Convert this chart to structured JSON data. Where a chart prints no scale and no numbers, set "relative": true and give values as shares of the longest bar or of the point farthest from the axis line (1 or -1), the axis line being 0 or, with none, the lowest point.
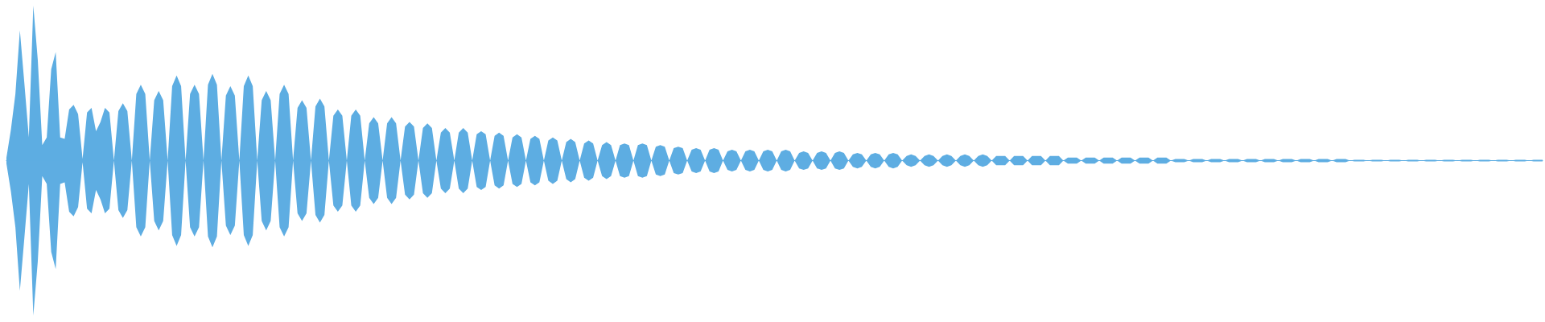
{
  "chart_data": {
    "type": "area",
    "relative": true,
    "categories": [
      null,
      null,
      null,
      null,
      null,
      null,
      null,
      null,
      null,
      null,
      null,
      null,
      null,
      null,
      null,
      null,
      null,
      null,
      null,
      null,
      null,
      null,
      null,
      null,
      null,
      null,
      null,
      null,
      null,
      null,
      null,
      null,
      null,
      null,
      null,
      null,
      null,
      null,
      null,
      null,
      null,
      null,
      null,
      null,
      null,
      null,
      null,
      null,
      null,
      null,
      null,
      null,
      null,
      null,
      null,
      null,
      null,
      null,
      null,
      null,
      null,
      null,
      null,
      null,
      null,
      null,
      null,
      null,
      null,
      null,
      null,
      null,
      null,
      null,
      null,
      null,
      null,
      null,
      null,
      null,
      null,
      null,
      null,
      null,
      null,
      null,
      null,
      null,
      null,
      null,
      null,
      null,
      null,
      null,
      null,
      null,
      null,
      null,
      null,
      null,
      null,
      null,
      null,
      null,
      null,
      null,
      null,
      null,
      null,
      null,
      null,
      null,
      null,
      null,
      null,
      null,
      null,
      null,
      null,
      null,
      null,
      null,
      null,
      null,
      null,
      null,
      null,
      null,
      null,
      null,
      null,
      null,
      null,
      null,
      null,
      null,
      null,
      null,
      null,
      null,
      null,
      null,
      null,
      null,
      null,
      null,
      null,
      null,
      null,
      null,
      null,
      null,
      null,
      null,
      null,
      null,
      null,
      null,
      null,
      null,
      null,
      null,
      null,
      null,
      null,
      null,
      null,
      null,
      null,
      null,
      null,
      null,
      null,
      null,
      null,
      null,
      null,
      null,
      null,
      null,
      null,
      null,
      null,
      null,
      null,
      null,
      null,
      null,
      null,
      null,
      null,
      null,
      null,
      null,
      null,
      null,
      null,
      null,
      null,
      null,
      null,
      null,
      null,
      null,
      null,
      null,
      null,
      null,
      null,
      null,
      null,
      null,
      null,
      null,
      null,
      null,
      null,
      null,
      null,
      null,
      null,
      null,
      null,
      null,
      null,
      null,
      null,
      null,
      null,
      null,
      null,
      null,
      null,
      null,
      null,
      null,
      null,
      null,
      null,
      null,
      null,
      null,
      null,
      null,
      null,
      null,
      null,
      null,
      null,
      null,
      null,
      null,
      null,
      null,
      null,
      null,
      null,
      null,
      null,
      null,
      null,
      null,
      null,
      null,
      null,
      null,
      null,
      null,
      null,
      null,
      null,
      null,
      null,
      null,
      null,
      null,
      null,
      null,
      null,
      null,
      null,
      null,
      null,
      null,
      null,
      null,
      null,
      null,
      null,
      null,
      null,
      null,
      null,
      null,
      null,
      null,
      null,
      null,
      null,
      null,
      null,
      null,
      null,
      null,
      null,
      null,
      null,
      null,
      null,
      null,
      null,
      null,
      null,
      null,
      null,
      null,
      null,
      null,
      null,
      null,
      null,
      null,
      null,
      null,
      null,
      null,
      null,
      null,
      null,
      null,
      null,
      null,
      null,
      null,
      null,
      null,
      null,
      null,
      null,
      null,
      null,
      null,
      null,
      null
    ],
    "series": [
      {
        "color": "#5dade2",
        "values": [
          0.02,
          0.2,
          0.43,
          0.84,
          0.5,
          0.15,
          1,
          0.65,
          0.1,
          0.15,
          0.59,
          0.7,
          0.15,
          0.14,
          0.33,
          0.36,
          0.3,
          0.01,
          0.31,
          0.34,
          0.19,
          0.25,
          0.34,
          0.31,
          0,
          0.32,
          0.37,
          0.32,
          0,
          0.43,
          0.49,
          0.43,
          0,
          0.39,
          0.45,
          0.39,
          0,
          0.48,
          0.55,
          0.48,
          0,
          0.43,
          0.49,
          0.43,
          0,
          0.49,
          0.56,
          0.49,
          0,
          0.42,
          0.48,
          0.42,
          0,
          0.48,
          0.55,
          0.48,
          0,
          0.39,
          0.45,
          0.39,
          0,
          0.43,
          0.49,
          0.43,
          0,
          0.34,
          0.39,
          0.34,
          0,
          0.35,
          0.4,
          0.35,
          0,
          0.29,
          0.33,
          0.29,
          0,
          0.29,
          0.33,
          0.29,
          0,
          0.24,
          0.28,
          0.24,
          0,
          0.24,
          0.28,
          0.24,
          0,
          0.22,
          0.25,
          0.22,
          0,
          0.21,
          0.24,
          0.21,
          0,
          0.18,
          0.21,
          0.18,
          0,
          0.18,
          0.21,
          0.18,
          0,
          0.17,
          0.19,
          0.17,
          0,
          0.16,
          0.18,
          0.16,
          0,
          0.15,
          0.17,
          0.15,
          0,
          0.14,
          0.16,
          0.14,
          0,
          0.13,
          0.15,
          0.13,
          0,
          0.12,
          0.14,
          0.12,
          0,
          0.11,
          0.13,
          0.11,
          0,
          0.1,
          0.12,
          0.1,
          0,
          0.1,
          0.11,
          0.1,
          0,
          0.1,
          0.11,
          0.1,
          0,
          0.09,
          0.1,
          0.09,
          0,
          0.08,
          0.09,
          0.08,
          0,
          0.07,
          0.08,
          0.07,
          0,
          0.07,
          0.08,
          0.07,
          0,
          0.06,
          0.07,
          0.06,
          0,
          0.06,
          0.07,
          0.06,
          0,
          0.06,
          0.07,
          0.06,
          0,
          0.06,
          0.07,
          0.06,
          0,
          0.05,
          0.06,
          0.05,
          0,
          0.05,
          0.06,
          0.05,
          0,
          0.05,
          0.06,
          0.05,
          0,
          0.04,
          0.05,
          0.04,
          0,
          0.04,
          0.05,
          0.04,
          0,
          0.04,
          0.05,
          0.04,
          0,
          0.03,
          0.04,
          0.03,
          0,
          0.03,
          0.04,
          0.03,
          0,
          0.03,
          0.04,
          0.03,
          0,
          0.03,
          0.04,
          0.03,
          0,
          0.03,
          0.04,
          0.03,
          0,
          0.03,
          0.03,
          0.03,
          0,
          0.03,
          0.03,
          0.03,
          0,
          0.03,
          0.03,
          0.03,
          0,
          0.03,
          0.03,
          0.03,
          0,
          0.02,
          0.02,
          0.02,
          0,
          0.02,
          0.02,
          0.02,
          0,
          0.02,
          0.02,
          0.02,
          0,
          0.02,
          0.02,
          0.02,
          0,
          0.02,
          0.02,
          0.02,
          0,
          0.02,
          0.02,
          0.02,
          0,
          0.01,
          0.01,
          0.01,
          0,
          0.01,
          0.01,
          0.01,
          0,
          0.01,
          0.01,
          0.01,
          0,
          0.01,
          0.01,
          0.01,
          0,
          0.01,
          0.01,
          0.01,
          0,
          0.01,
          0.01,
          0.01,
          0,
          0.01,
          0.01,
          0.01,
          0,
          0.01,
          0.01,
          0.01,
          0,
          0.01,
          0.01,
          0.01,
          0,
          0.01,
          0.01,
          0.01,
          0,
          0.005,
          0.005,
          0.005,
          0,
          0.005,
          0.005,
          0.005,
          0,
          0.005,
          0.005,
          0.005,
          0,
          0.005,
          0.005,
          0.005,
          0,
          0.005,
          0.005,
          0.005,
          0,
          0.005,
          0.005,
          0.005,
          0,
          0.005,
          0.005,
          0.005,
          0,
          0.005,
          0.005,
          0.005,
          0,
          0.005,
          0.005,
          0.005,
          0,
          0.005,
          0.005,
          0.005,
          0,
          0.005,
          0.005,
          0.005
        ]
      },
      {
        "color": "#5eade2",
        "values": [
          -0.02,
          -0.2,
          -0.43,
          -0.84,
          -0.5,
          -0.15,
          -1,
          -0.65,
          -0.1,
          -0.15,
          -0.59,
          -0.7,
          -0.15,
          -0.14,
          -0.33,
          -0.36,
          -0.3,
          -0.01,
          -0.31,
          -0.34,
          -0.19,
          -0.25,
          -0.34,
          -0.31,
          0,
          -0.32,
          -0.37,
          -0.32,
          0,
          -0.43,
          -0.49,
          -0.43,
          0,
          -0.39,
          -0.45,
          -0.39,
          0,
          -0.48,
          -0.55,
          -0.48,
          0,
          -0.43,
          -0.49,
          -0.43,
          0,
          -0.49,
          -0.56,
          -0.49,
          0,
          -0.42,
          -0.48,
          -0.42,
          0,
          -0.48,
          -0.55,
          -0.48,
          0,
          -0.39,
          -0.45,
          -0.39,
          0,
          -0.43,
          -0.49,
          -0.43,
          0,
          -0.34,
          -0.39,
          -0.34,
          0,
          -0.35,
          -0.4,
          -0.35,
          0,
          -0.29,
          -0.33,
          -0.29,
          0,
          -0.29,
          -0.33,
          -0.29,
          0,
          -0.24,
          -0.28,
          -0.24,
          0,
          -0.24,
          -0.28,
          -0.24,
          0,
          -0.22,
          -0.25,
          -0.22,
          0,
          -0.21,
          -0.24,
          -0.21,
          0,
          -0.18,
          -0.21,
          -0.18,
          0,
          -0.18,
          -0.21,
          -0.18,
          0,
          -0.17,
          -0.19,
          -0.17,
          0,
          -0.16,
          -0.18,
          -0.16,
          0,
          -0.15,
          -0.17,
          -0.15,
          0,
          -0.14,
          -0.16,
          -0.14,
          0,
          -0.13,
          -0.15,
          -0.13,
          0,
          -0.12,
          -0.14,
          -0.12,
          0,
          -0.11,
          -0.13,
          -0.11,
          0,
          -0.1,
          -0.12,
          -0.1,
          0,
          -0.1,
          -0.11,
          -0.1,
          0,
          -0.1,
          -0.11,
          -0.1,
          0,
          -0.09,
          -0.1,
          -0.09,
          0,
          -0.08,
          -0.09,
          -0.08,
          0,
          -0.07,
          -0.08,
          -0.07,
          0,
          -0.07,
          -0.08,
          -0.07,
          0,
          -0.06,
          -0.07,
          -0.06,
          0,
          -0.06,
          -0.07,
          -0.06,
          0,
          -0.06,
          -0.07,
          -0.06,
          0,
          -0.06,
          -0.07,
          -0.06,
          0,
          -0.05,
          -0.06,
          -0.05,
          0,
          -0.05,
          -0.06,
          -0.05,
          0,
          -0.05,
          -0.06,
          -0.05,
          0,
          -0.04,
          -0.05,
          -0.04,
          0,
          -0.04,
          -0.05,
          -0.04,
          0,
          -0.04,
          -0.05,
          -0.04,
          0,
          -0.03,
          -0.04,
          -0.03,
          0,
          -0.03,
          -0.04,
          -0.03,
          0,
          -0.03,
          -0.04,
          -0.03,
          0,
          -0.03,
          -0.04,
          -0.03,
          0,
          -0.03,
          -0.04,
          -0.03,
          0,
          -0.03,
          -0.03,
          -0.03,
          0,
          -0.03,
          -0.03,
          -0.03,
          0,
          -0.03,
          -0.03,
          -0.03,
          0,
          -0.03,
          -0.03,
          -0.03,
          0,
          -0.02,
          -0.02,
          -0.02,
          0,
          -0.02,
          -0.02,
          -0.02,
          0,
          -0.02,
          -0.02,
          -0.02,
          0,
          -0.02,
          -0.02,
          -0.02,
          0,
          -0.02,
          -0.02,
          -0.02,
          0,
          -0.02,
          -0.02,
          -0.02,
          0,
          -0.01,
          -0.01,
          -0.01,
          0,
          -0.01,
          -0.01,
          -0.01,
          0,
          -0.01,
          -0.01,
          -0.01,
          0,
          -0.01,
          -0.01,
          -0.01,
          0,
          -0.01,
          -0.01,
          -0.01,
          0,
          -0.01,
          -0.01,
          -0.01,
          0,
          -0.01,
          -0.01,
          -0.01,
          0,
          -0.01,
          -0.01,
          -0.01,
          0,
          -0.01,
          -0.01,
          -0.01,
          0,
          -0.01,
          -0.01,
          -0.01,
          0,
          -0.005,
          -0.005,
          -0.005,
          0,
          -0.005,
          -0.005,
          -0.005,
          0,
          -0.005,
          -0.005,
          -0.005,
          0,
          -0.005,
          -0.005,
          -0.005,
          0,
          -0.005,
          -0.005,
          -0.005,
          0,
          -0.005,
          -0.005,
          -0.005,
          0,
          -0.005,
          -0.005,
          -0.005,
          0,
          -0.005,
          -0.005,
          -0.005,
          0,
          -0.005,
          -0.005,
          -0.005,
          0,
          -0.005,
          -0.005,
          -0.005,
          0,
          -0.005,
          -0.005,
          -0.005
        ]
      }
    ]
  }
}
